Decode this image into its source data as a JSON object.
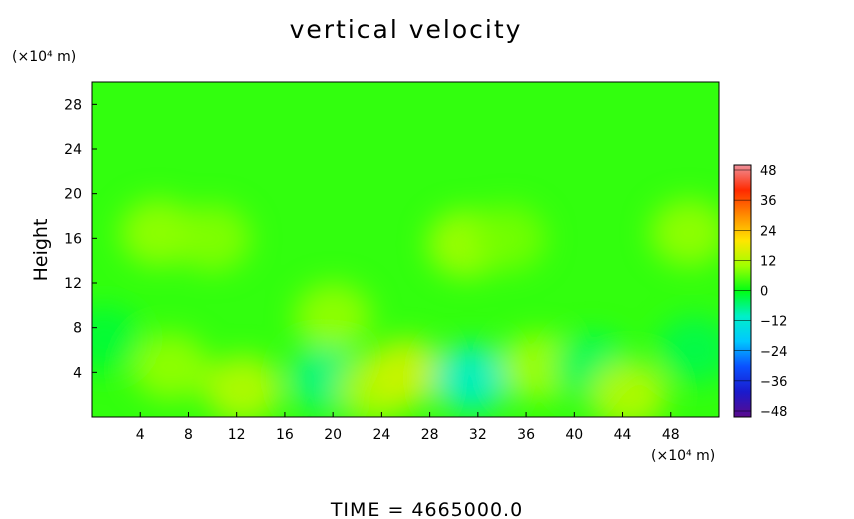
{
  "chart_data": {
    "type": "heatmap",
    "title": "vertical velocity",
    "xlabel": "",
    "ylabel": "Height",
    "x_unit": "(×10⁴ m)",
    "y_unit": "(×10⁴ m)",
    "xlim": [
      0,
      52
    ],
    "ylim": [
      0,
      30
    ],
    "x_ticks": [
      "4",
      "8",
      "12",
      "16",
      "20",
      "24",
      "28",
      "32",
      "36",
      "40",
      "44",
      "48"
    ],
    "y_ticks": [
      "4",
      "8",
      "12",
      "16",
      "20",
      "24",
      "28"
    ],
    "background_value": 3,
    "features": [
      {
        "x": 6.5,
        "y": 4.5,
        "value": 9
      },
      {
        "x": 12.5,
        "y": 2.5,
        "value": 12
      },
      {
        "x": 19.5,
        "y": 3.5,
        "value": -6
      },
      {
        "x": 20,
        "y": 9,
        "value": 9
      },
      {
        "x": 23.5,
        "y": 2.5,
        "value": 11
      },
      {
        "x": 26,
        "y": 4,
        "value": 14
      },
      {
        "x": 31.5,
        "y": 3.5,
        "value": -10
      },
      {
        "x": 37,
        "y": 4.5,
        "value": 10
      },
      {
        "x": 41.5,
        "y": 4.5,
        "value": -4
      },
      {
        "x": 44.5,
        "y": 2,
        "value": 12
      },
      {
        "x": 50,
        "y": 6,
        "value": -3
      },
      {
        "x": 1,
        "y": 7,
        "value": -2
      },
      {
        "x": 5.5,
        "y": 16.5,
        "value": 9
      },
      {
        "x": 10,
        "y": 16,
        "value": 8
      },
      {
        "x": 31,
        "y": 15.5,
        "value": 10
      },
      {
        "x": 34.5,
        "y": 16,
        "value": 7
      },
      {
        "x": 49.5,
        "y": 16.5,
        "value": 9
      }
    ],
    "colorbar": {
      "ticks": [
        "48",
        "36",
        "24",
        "12",
        "0",
        "−12",
        "−24",
        "−36",
        "−48"
      ],
      "levels": [
        -48,
        48
      ],
      "colors": [
        "#5b0a8c",
        "#1a1acc",
        "#0a50ff",
        "#00c8ff",
        "#00f0c8",
        "#00ff14",
        "#a0ff00",
        "#ffe600",
        "#ff8c00",
        "#ff2a00",
        "#f0909a"
      ]
    },
    "footer": "TIME  =  4665000.0"
  }
}
